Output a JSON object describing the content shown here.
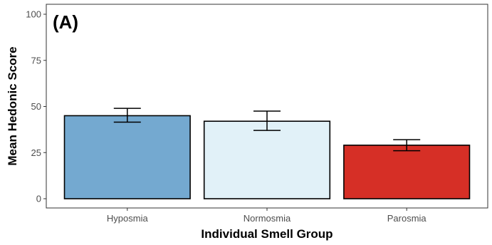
{
  "chart_data": {
    "type": "bar",
    "panel_label": "(A)",
    "title": "",
    "xlabel": "Individual Smell Group",
    "ylabel": "Mean Hedonic Score",
    "categories": [
      "Hyposmia",
      "Normosmia",
      "Parosmia"
    ],
    "values": [
      45,
      42,
      29
    ],
    "error_low": [
      41.5,
      37,
      26
    ],
    "error_high": [
      49,
      47.5,
      32
    ],
    "bar_colors": [
      "#74a9d0",
      "#e1f1f8",
      "#d62f26"
    ],
    "ylim": [
      0,
      100
    ],
    "yticks": [
      "0",
      "25",
      "50",
      "75",
      "100"
    ],
    "grid": false,
    "legend": "none"
  }
}
